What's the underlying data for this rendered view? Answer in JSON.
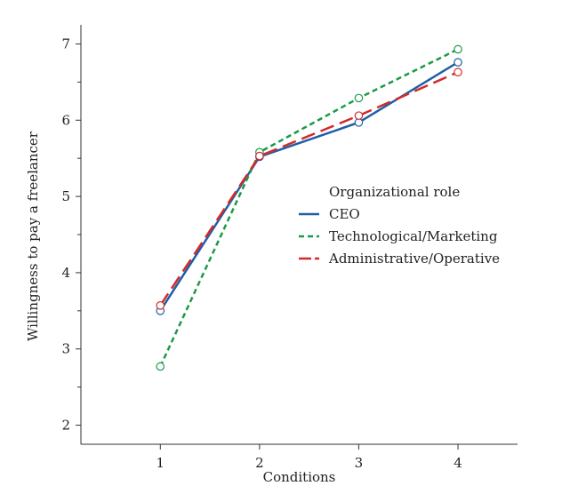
{
  "chart_data": {
    "type": "line",
    "title": "",
    "xlabel": "Conditions",
    "ylabel": "Willingness to pay a freelancer",
    "x": [
      1,
      2,
      3,
      4
    ],
    "xticks": [
      "1",
      "2",
      "3",
      "4"
    ],
    "yticks": [
      "2",
      "3",
      "4",
      "5",
      "6",
      "7"
    ],
    "xlim": [
      0.2,
      4.6
    ],
    "ylim": [
      1.75,
      7.25
    ],
    "grid": false,
    "legend": {
      "title": "Organizational role",
      "placement": "center-right"
    },
    "series": [
      {
        "name": "CEO",
        "values": [
          3.5,
          5.52,
          5.97,
          6.76
        ],
        "color": "#1f5fa8",
        "dash": "solid"
      },
      {
        "name": "Technological/Marketing",
        "values": [
          2.77,
          5.58,
          6.29,
          6.93
        ],
        "color": "#1a9a48",
        "dash": "short-dash"
      },
      {
        "name": "Administrative/Operative",
        "values": [
          3.57,
          5.53,
          6.06,
          6.63
        ],
        "color": "#d42a2a",
        "dash": "long-dash"
      }
    ]
  }
}
